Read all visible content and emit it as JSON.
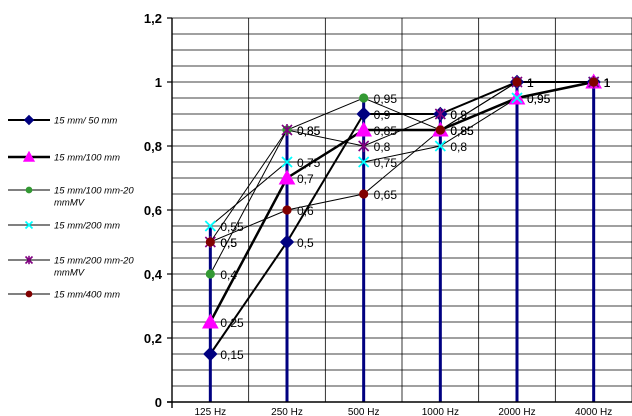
{
  "chart_data": {
    "type": "line",
    "title": "",
    "xlabel": "",
    "ylabel": "",
    "categories": [
      "125 Hz",
      "250 Hz",
      "500 Hz",
      "1000 Hz",
      "2000 Hz",
      "4000 Hz"
    ],
    "ylim": [
      0,
      1.2
    ],
    "yticks": [
      "0",
      "0,2",
      "0,4",
      "0,6",
      "0,8",
      "1",
      "1,2"
    ],
    "grid": true,
    "legend_position": "left",
    "series": [
      {
        "name": "15 mm/ 50 mm",
        "values": [
          0.15,
          0.5,
          0.9,
          0.9,
          1,
          1
        ],
        "labels": [
          "0,15",
          "0,5",
          "0,9",
          "0,9",
          "1",
          "1"
        ],
        "color": "#000080",
        "marker": "diamond",
        "line_width": 2
      },
      {
        "name": "15 mm/100 mm",
        "values": [
          0.25,
          0.7,
          0.85,
          0.85,
          0.95,
          1
        ],
        "labels": [
          "0,25",
          "0,7",
          "0,85",
          "0,85",
          "0,95",
          "1"
        ],
        "color": "#FF00FF",
        "marker": "triangle",
        "line_width": 2.5
      },
      {
        "name": "15 mm/100 mm-20 mmMV",
        "values": [
          0.4,
          0.85,
          0.95,
          0.85,
          1,
          1
        ],
        "labels": [
          "0,4",
          "0,85",
          "0,95",
          "0,85",
          "1",
          "1"
        ],
        "color": "#339933",
        "marker": "circle",
        "line_width": 1
      },
      {
        "name": "15 mm/200 mm",
        "values": [
          0.55,
          0.75,
          0.75,
          0.8,
          0.95,
          1
        ],
        "labels": [
          "0,55",
          "0,75",
          "0,75",
          "0,8",
          "0,95",
          "1"
        ],
        "color": "#00FFFF",
        "marker": "x",
        "line_width": 1
      },
      {
        "name": "15 mm/200 mm-20 mmMV",
        "values": [
          0.5,
          0.85,
          0.8,
          0.9,
          1,
          1
        ],
        "labels": [
          "0,5",
          "0,85",
          "0,8",
          "0,9",
          "1",
          "1"
        ],
        "color": "#800080",
        "marker": "star",
        "line_width": 1
      },
      {
        "name": "15 mm/400 mm",
        "values": [
          0.5,
          0.6,
          0.65,
          0.85,
          1,
          1
        ],
        "labels": [
          "0,5",
          "0,6",
          "0,65",
          "0,85",
          "1",
          "1"
        ],
        "color": "#800000",
        "marker": "circle",
        "line_width": 1
      }
    ],
    "drop_line_color": "#000080"
  }
}
